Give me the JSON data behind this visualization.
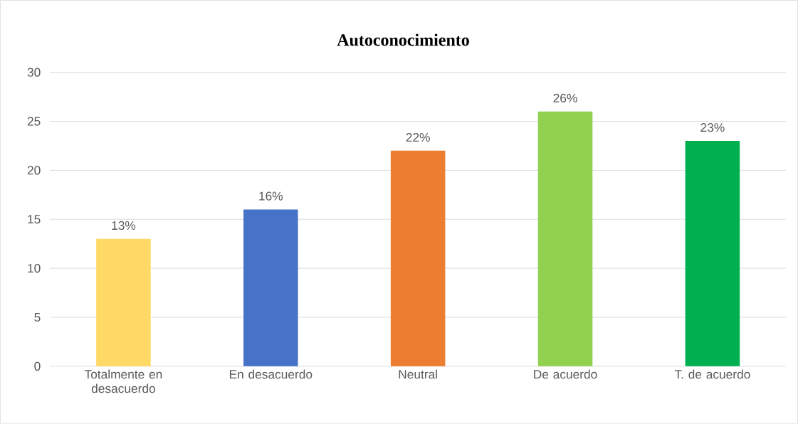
{
  "chart_data": {
    "type": "bar",
    "title": "Autoconocimiento",
    "categories": [
      "Totalmente en desacuerdo",
      "En desacuerdo",
      "Neutral",
      "De acuerdo",
      "T. de acuerdo"
    ],
    "values": [
      13,
      16,
      22,
      26,
      23
    ],
    "value_labels": [
      "13%",
      "16%",
      "22%",
      "26%",
      "23%"
    ],
    "colors": [
      "#ffd966",
      "#4673c8",
      "#ed7d31",
      "#92d050",
      "#00b050"
    ],
    "ylim": [
      0,
      30
    ],
    "yticks": [
      0,
      5,
      10,
      15,
      20,
      25,
      30
    ],
    "grid": "y"
  }
}
